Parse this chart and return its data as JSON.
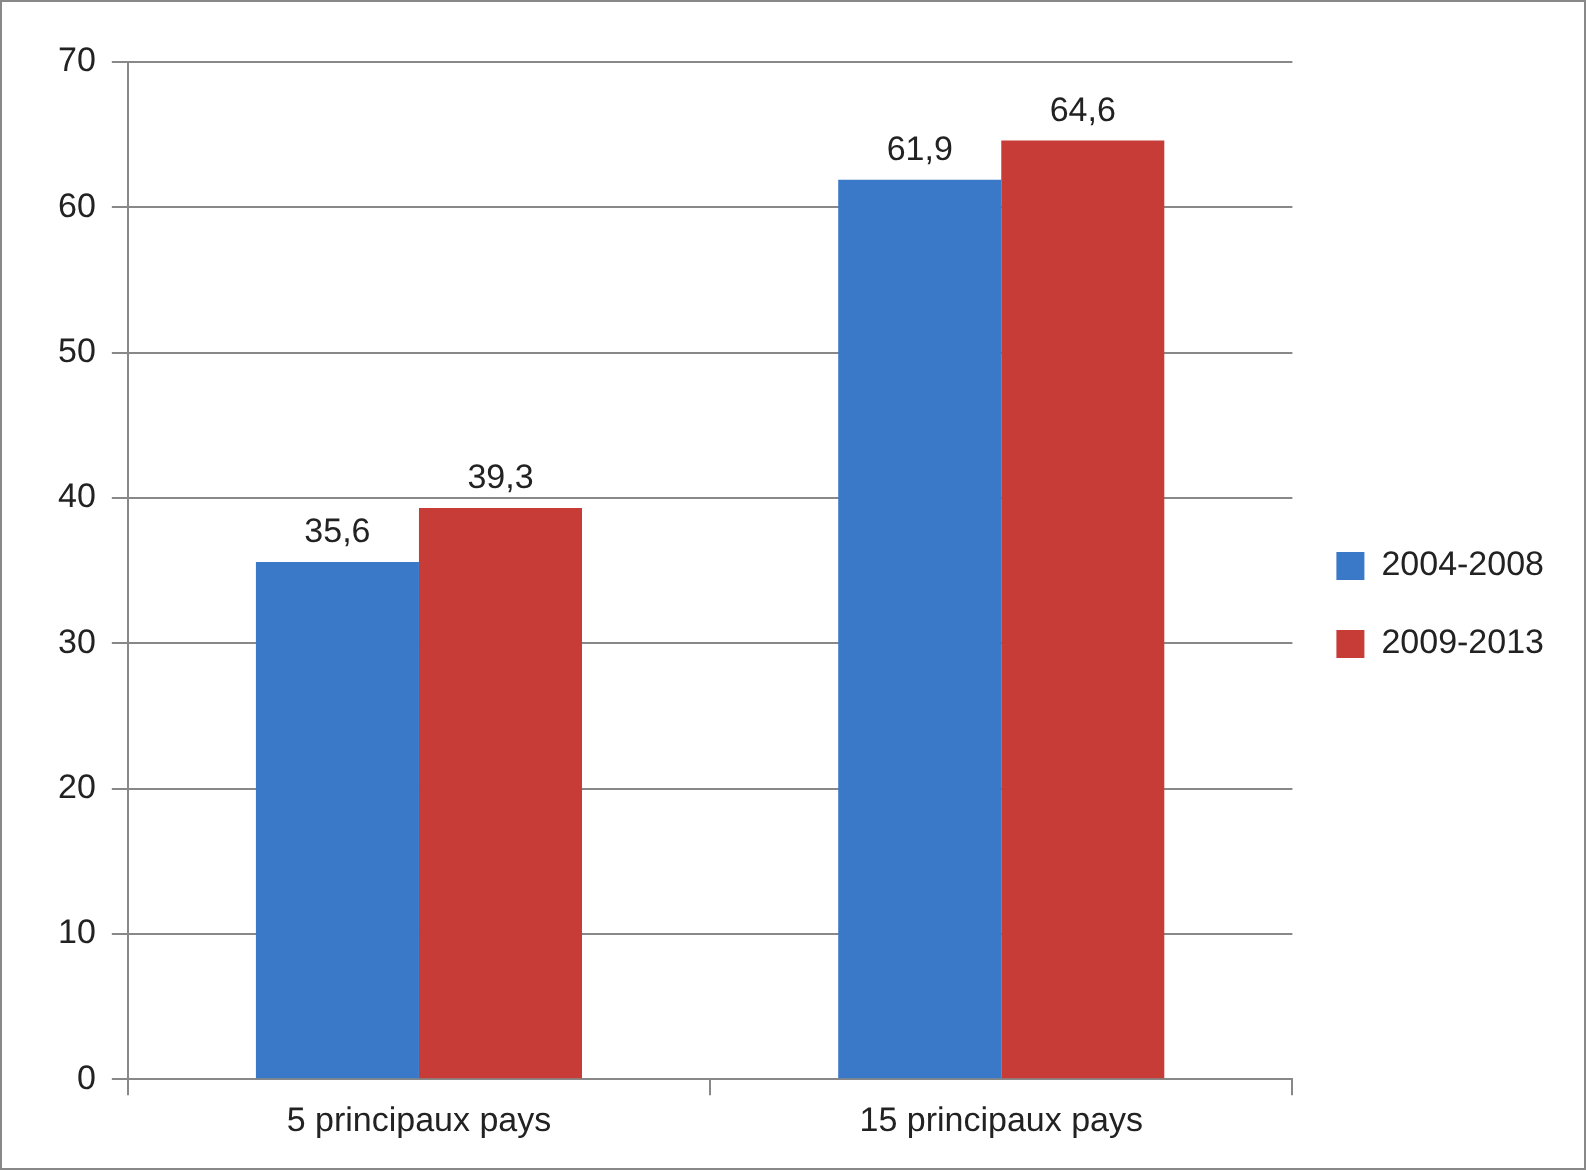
{
  "chart_data": {
    "type": "bar",
    "categories": [
      "5 principaux pays",
      "15 principaux pays"
    ],
    "series": [
      {
        "name": "2004-2008",
        "color": "#3a78c8",
        "values": [
          35.6,
          61.9
        ],
        "value_labels": [
          "35,6",
          "61,9"
        ]
      },
      {
        "name": "2009-2013",
        "color": "#c83c38",
        "values": [
          39.3,
          64.6
        ],
        "value_labels": [
          "39,3",
          "64,6"
        ]
      }
    ],
    "ylim": [
      0,
      70
    ],
    "yticks": [
      0,
      10,
      20,
      30,
      40,
      50,
      60,
      70
    ],
    "grid": "y",
    "legend": "right"
  }
}
